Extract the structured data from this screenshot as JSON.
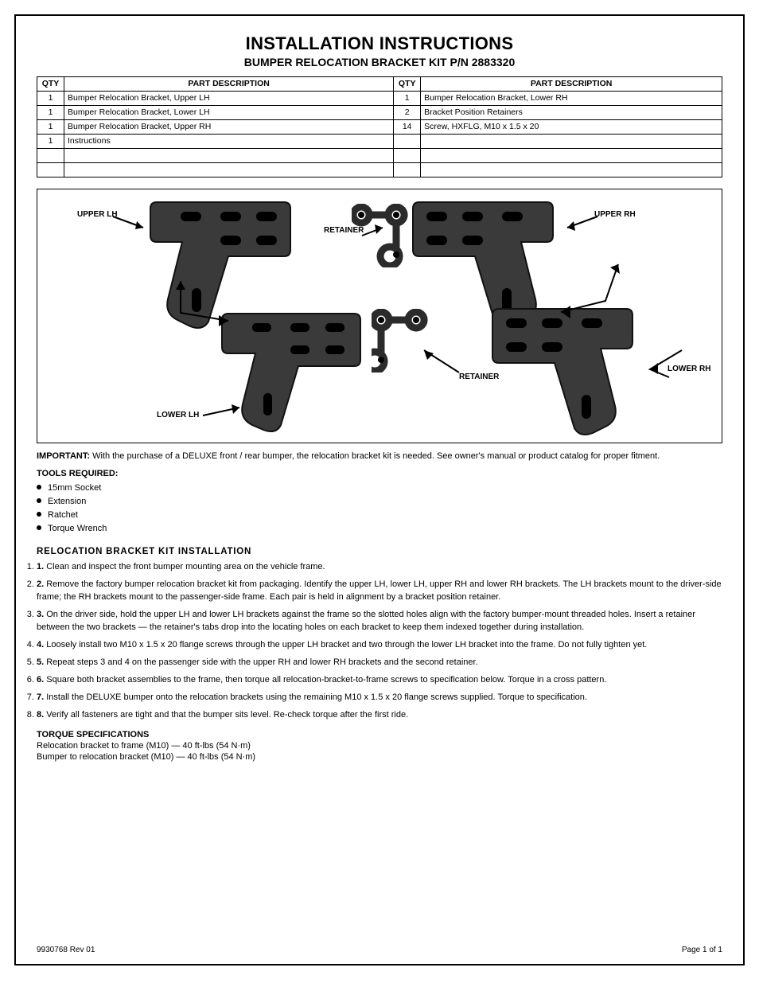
{
  "header": {
    "title": "INSTALLATION INSTRUCTIONS",
    "subtitle": "BUMPER RELOCATION BRACKET KIT P/N 2883320"
  },
  "parts_table": {
    "columns": [
      "QTY",
      "PART DESCRIPTION",
      "QTY",
      "PART DESCRIPTION"
    ],
    "rows": [
      [
        "1",
        "Bumper Relocation Bracket, Upper LH",
        "1",
        "Bumper Relocation Bracket, Lower RH"
      ],
      [
        "1",
        "Bumper Relocation Bracket, Lower LH",
        "2",
        "Bracket Position Retainers"
      ],
      [
        "1",
        "Bumper Relocation Bracket, Upper RH",
        "14",
        "Screw, HXFLG, M10 x 1.5 x 20"
      ],
      [
        "1",
        "Instructions",
        "",
        ""
      ],
      [
        "",
        "",
        "",
        ""
      ],
      [
        "",
        "",
        "",
        ""
      ]
    ]
  },
  "figure": {
    "labels": {
      "upper_lh": "UPPER LH",
      "lower_lh": "LOWER LH",
      "retainer": "RETAINER",
      "upper_rh": "UPPER RH",
      "lower_rh": "LOWER RH"
    }
  },
  "note": {
    "lead": "IMPORTANT:",
    "text": " With the purchase of a DELUXE front / rear bumper, the relocation bracket kit is needed. See owner's manual or product catalog for proper fitment."
  },
  "tools": {
    "heading": "TOOLS REQUIRED:",
    "items": [
      "15mm Socket",
      "Extension",
      "Ratchet",
      "Torque Wrench"
    ]
  },
  "install": {
    "title": "RELOCATION BRACKET KIT INSTALLATION",
    "steps": [
      "Clean and inspect the front bumper mounting area on the vehicle frame.",
      "Remove the factory bumper relocation bracket kit from packaging. Identify the upper LH, lower LH, upper RH and lower RH brackets. The LH brackets mount to the driver-side frame; the RH brackets mount to the passenger-side frame. Each pair is held in alignment by a bracket position retainer.",
      "On the driver side, hold the upper LH and lower LH brackets against the frame so the slotted holes align with the factory bumper-mount threaded holes. Insert a retainer between the two brackets — the retainer's tabs drop into the locating holes on each bracket to keep them indexed together during installation.",
      "Loosely install two M10 x 1.5 x 20 flange screws through the upper LH bracket and two through the lower LH bracket into the frame. Do not fully tighten yet.",
      "Repeat steps 3 and 4 on the passenger side with the upper RH and lower RH brackets and the second retainer.",
      "Square both bracket assemblies to the frame, then torque all relocation-bracket-to-frame screws to specification below. Torque in a cross pattern.",
      "Install the DELUXE bumper onto the relocation brackets using the remaining M10 x 1.5 x 20 flange screws supplied. Torque to specification.",
      "Verify all fasteners are tight and that the bumper sits level. Re-check torque after the first ride."
    ]
  },
  "torque": {
    "heading": "TORQUE SPECIFICATIONS",
    "lines": [
      "Relocation bracket to frame (M10) — 40 ft-lbs (54 N·m)",
      "Bumper to relocation bracket (M10) — 40 ft-lbs (54 N·m)"
    ]
  },
  "footer": {
    "left": "9930768 Rev 01",
    "right": "Page 1 of 1"
  },
  "colors": {
    "text": "#000000",
    "border": "#000000",
    "bracket_fill": "#3a3a3a",
    "bracket_edge": "#1a1a1a",
    "background": "#ffffff"
  }
}
